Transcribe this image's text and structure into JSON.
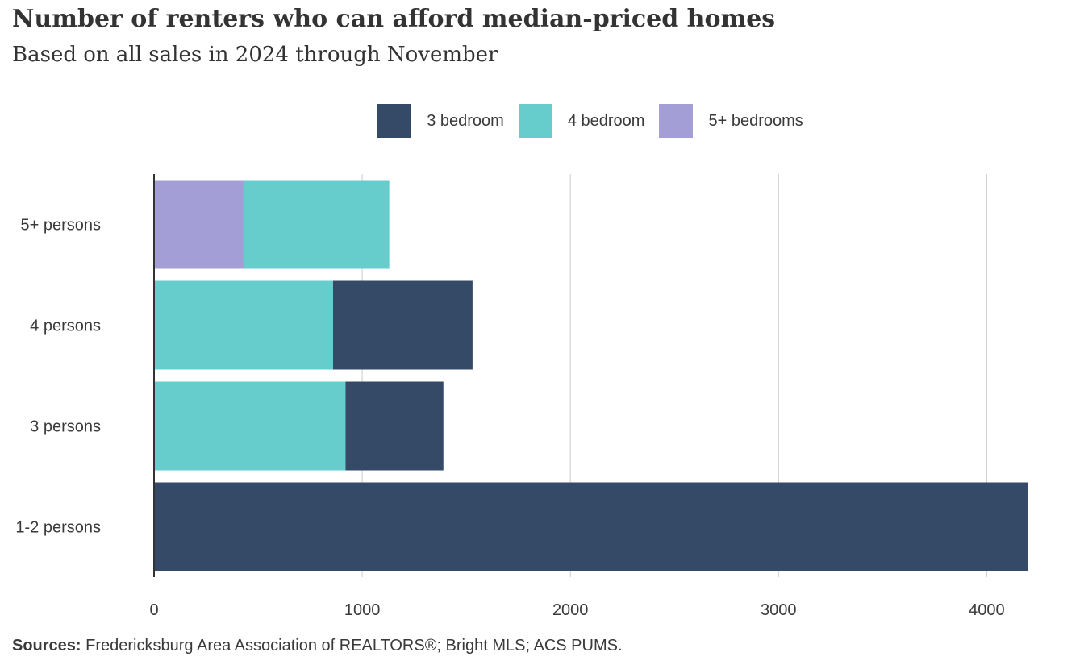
{
  "title": "Number of renters  who can afford median-priced homes",
  "subtitle": "Based on all sales in 2024 through November",
  "source_label": "Sources:",
  "source_text": " Fredericksburg  Area Association of REALTORS®;  Bright MLS;  ACS PUMS.",
  "colors": {
    "3 bedroom": "#344a66",
    "4 bedroom": "#66cdcc",
    "5+ bedrooms": "#a39fd6",
    "grid": "#cccccc",
    "axis": "#333333"
  },
  "legend": [
    {
      "label": "3 bedroom"
    },
    {
      "label": "4 bedroom"
    },
    {
      "label": "5+ bedrooms"
    }
  ],
  "chart_data": {
    "type": "bar",
    "orientation": "horizontal",
    "stacked": true,
    "categories": [
      "5+ persons",
      "4 persons",
      "3 persons",
      "1-2 persons"
    ],
    "series": [
      {
        "name": "5+ bedrooms",
        "values": [
          430,
          0,
          0,
          0
        ]
      },
      {
        "name": "4 bedroom",
        "values": [
          700,
          860,
          920,
          0
        ]
      },
      {
        "name": "3 bedroom",
        "values": [
          0,
          670,
          470,
          4200
        ]
      }
    ],
    "xlim": [
      0,
      4200
    ],
    "xticks": [
      0,
      1000,
      2000,
      3000,
      4000
    ],
    "xlabel": "",
    "ylabel": "",
    "grid": true,
    "legend_position": "top"
  }
}
